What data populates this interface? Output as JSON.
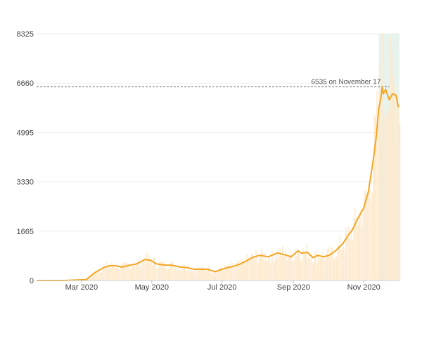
{
  "chart_data": {
    "type": "line",
    "title": "",
    "xlabel": "",
    "ylabel": "",
    "x_range": [
      "2020-01-22",
      "2020-12-02"
    ],
    "ylim": [
      0,
      8325
    ],
    "y_ticks": [
      0,
      1665,
      3330,
      4995,
      6660,
      8325
    ],
    "y_tick_labels": [
      "0",
      "1665",
      "3330",
      "4995",
      "6660",
      "8325"
    ],
    "x_ticks": [
      {
        "date": "2020-03-01",
        "label": "Mar 2020"
      },
      {
        "date": "2020-05-01",
        "label": "May 2020"
      },
      {
        "date": "2020-07-01",
        "label": "Jul 2020"
      },
      {
        "date": "2020-09-01",
        "label": "Sep 2020"
      },
      {
        "date": "2020-11-01",
        "label": "Nov 2020"
      }
    ],
    "grid": true,
    "legend": false,
    "colors": {
      "line": "#f5a623",
      "daily_bars": "#fde9cc",
      "highlight_region": "#e8f3ee",
      "peak_line": "#888888",
      "grid": "#eeeeee",
      "tick_text": "#444444"
    },
    "highlight_range": [
      "2020-11-14",
      "2020-12-02"
    ],
    "peak": {
      "value": 6535,
      "date": "2020-11-17",
      "label": "6535 on November 17"
    },
    "series": [
      {
        "kind": "moving_average",
        "x": [
          "2020-01-22",
          "2020-02-15",
          "2020-03-05",
          "2020-03-12",
          "2020-03-20",
          "2020-03-25",
          "2020-03-30",
          "2020-04-05",
          "2020-04-10",
          "2020-04-18",
          "2020-04-25",
          "2020-04-30",
          "2020-05-05",
          "2020-05-12",
          "2020-05-18",
          "2020-05-25",
          "2020-06-01",
          "2020-06-07",
          "2020-06-12",
          "2020-06-18",
          "2020-06-25",
          "2020-07-01",
          "2020-07-05",
          "2020-07-10",
          "2020-07-17",
          "2020-07-23",
          "2020-07-28",
          "2020-08-03",
          "2020-08-10",
          "2020-08-18",
          "2020-08-25",
          "2020-08-30",
          "2020-09-05",
          "2020-09-08",
          "2020-09-13",
          "2020-09-18",
          "2020-09-22",
          "2020-09-27",
          "2020-10-02",
          "2020-10-08",
          "2020-10-14",
          "2020-10-18",
          "2020-10-22",
          "2020-10-27",
          "2020-11-01",
          "2020-11-05",
          "2020-11-09",
          "2020-11-12",
          "2020-11-14",
          "2020-11-16",
          "2020-11-17",
          "2020-11-18",
          "2020-11-20",
          "2020-11-23",
          "2020-11-26",
          "2020-11-29",
          "2020-12-01"
        ],
        "values": [
          0,
          0,
          30,
          250,
          430,
          500,
          500,
          450,
          500,
          560,
          710,
          680,
          560,
          520,
          520,
          460,
          430,
          380,
          380,
          380,
          300,
          380,
          430,
          470,
          560,
          680,
          790,
          850,
          800,
          930,
          860,
          800,
          1000,
          920,
          950,
          770,
          850,
          800,
          850,
          1020,
          1250,
          1500,
          1700,
          2100,
          2450,
          3000,
          4000,
          4900,
          5800,
          6200,
          6535,
          6300,
          6450,
          6100,
          6300,
          6250,
          5850
        ]
      }
    ]
  }
}
